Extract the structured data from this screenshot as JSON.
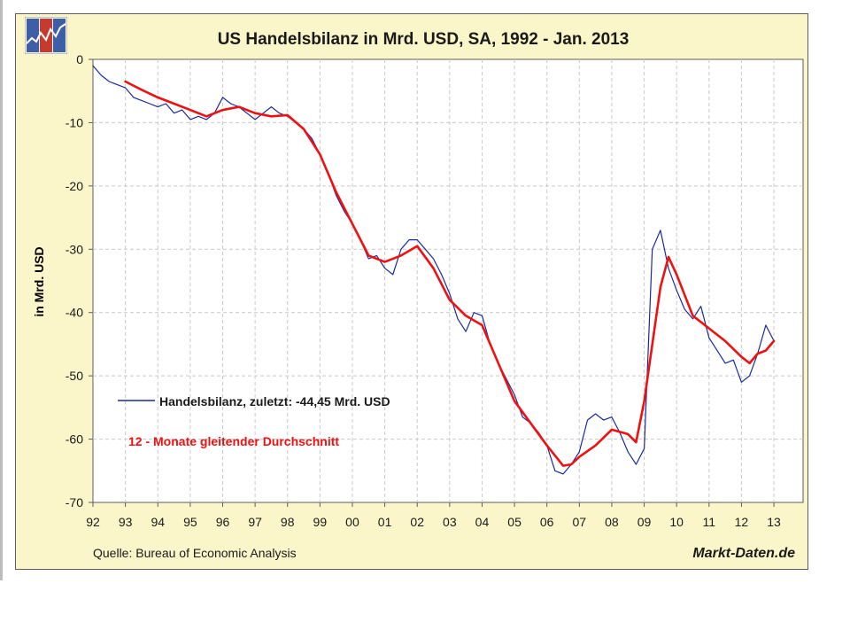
{
  "chart_data": {
    "type": "line",
    "title": "US Handelsbilanz in Mrd. USD, SA, 1992 - Jan. 2013",
    "xlabel": "",
    "ylabel": "in Mrd. USD",
    "xlim": [
      1992,
      2013.9
    ],
    "ylim": [
      -70,
      0
    ],
    "x_tick_labels": [
      "92",
      "93",
      "94",
      "95",
      "96",
      "97",
      "98",
      "99",
      "00",
      "01",
      "02",
      "03",
      "04",
      "05",
      "06",
      "07",
      "08",
      "09",
      "10",
      "11",
      "12",
      "13"
    ],
    "y_ticks": [
      0,
      -10,
      -20,
      -30,
      -40,
      -50,
      -60,
      -70
    ],
    "grid": true,
    "legend": "middle-left",
    "series": [
      {
        "name": "Handelsbilanz, zuletzt: -44,45 Mrd. USD",
        "color": "#1a2a9e",
        "x": [
          1992.0,
          1992.25,
          1992.5,
          1992.75,
          1993.0,
          1993.25,
          1993.5,
          1993.75,
          1994.0,
          1994.25,
          1994.5,
          1994.75,
          1995.0,
          1995.25,
          1995.5,
          1995.75,
          1996.0,
          1996.25,
          1996.5,
          1996.75,
          1997.0,
          1997.25,
          1997.5,
          1997.75,
          1998.0,
          1998.25,
          1998.5,
          1998.75,
          1999.0,
          1999.25,
          1999.5,
          1999.75,
          2000.0,
          2000.25,
          2000.5,
          2000.75,
          2001.0,
          2001.25,
          2001.5,
          2001.75,
          2002.0,
          2002.25,
          2002.5,
          2002.75,
          2003.0,
          2003.25,
          2003.5,
          2003.75,
          2004.0,
          2004.25,
          2004.5,
          2004.75,
          2005.0,
          2005.25,
          2005.5,
          2005.75,
          2006.0,
          2006.25,
          2006.5,
          2006.75,
          2007.0,
          2007.25,
          2007.5,
          2007.75,
          2008.0,
          2008.25,
          2008.5,
          2008.75,
          2009.0,
          2009.25,
          2009.5,
          2009.75,
          2010.0,
          2010.25,
          2010.5,
          2010.75,
          2011.0,
          2011.25,
          2011.5,
          2011.75,
          2012.0,
          2012.25,
          2012.5,
          2012.75,
          2013.0
        ],
        "values": [
          -1,
          -2.5,
          -3.5,
          -4,
          -4.5,
          -6,
          -6.5,
          -7,
          -7.5,
          -7,
          -8.5,
          -8,
          -9.5,
          -9,
          -9.5,
          -8.5,
          -6,
          -7,
          -7.5,
          -8.5,
          -9.5,
          -8.5,
          -7.5,
          -8.5,
          -9,
          -10,
          -11,
          -12.5,
          -15,
          -18,
          -21.5,
          -24,
          -26,
          -28.5,
          -31.5,
          -31,
          -33,
          -34,
          -30,
          -28.5,
          -28.5,
          -30,
          -31.5,
          -34,
          -37,
          -41,
          -43,
          -40,
          -40.5,
          -45,
          -48,
          -50.5,
          -53,
          -56.5,
          -57.5,
          -59,
          -61,
          -65,
          -65.5,
          -64,
          -62,
          -57,
          -56,
          -57,
          -56.5,
          -59,
          -62,
          -64,
          -61.5,
          -30,
          -27,
          -33,
          -36.5,
          -39.5,
          -41,
          -39,
          -44,
          -46,
          -48,
          -47.5,
          -51,
          -50,
          -46.5,
          -42,
          -44.45
        ]
      },
      {
        "name": "12 - Monate gleitender Durchschnitt",
        "color": "#ee1111",
        "x": [
          1993.0,
          1993.5,
          1994.0,
          1994.5,
          1995.0,
          1995.5,
          1996.0,
          1996.5,
          1997.0,
          1997.5,
          1998.0,
          1998.5,
          1999.0,
          1999.5,
          2000.0,
          2000.5,
          2001.0,
          2001.5,
          2002.0,
          2002.5,
          2003.0,
          2003.5,
          2004.0,
          2004.5,
          2005.0,
          2005.5,
          2006.0,
          2006.5,
          2006.75,
          2007.0,
          2007.5,
          2008.0,
          2008.5,
          2008.75,
          2009.0,
          2009.5,
          2009.75,
          2010.0,
          2010.5,
          2011.0,
          2011.5,
          2012.0,
          2012.25,
          2012.5,
          2012.75,
          2013.0
        ],
        "values": [
          -3.5,
          -4.8,
          -6,
          -7,
          -8,
          -9,
          -8,
          -7.5,
          -8.5,
          -9,
          -8.8,
          -11,
          -15,
          -21,
          -26,
          -31,
          -32,
          -31,
          -29.5,
          -33,
          -38,
          -40.5,
          -42,
          -48,
          -54,
          -57.5,
          -61,
          -64.2,
          -64,
          -62.8,
          -61,
          -58.5,
          -59.2,
          -60.5,
          -54,
          -36,
          -31.2,
          -34,
          -40.5,
          -42.5,
          -44.5,
          -47,
          -48,
          -46.5,
          -46,
          -44.5
        ]
      }
    ]
  }
}
